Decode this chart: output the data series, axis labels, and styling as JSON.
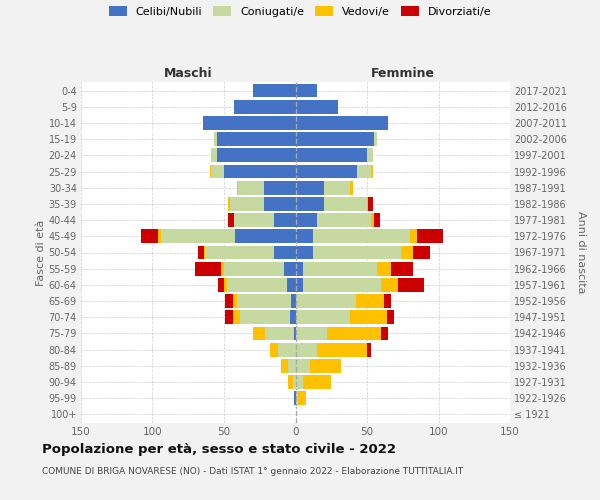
{
  "age_groups": [
    "100+",
    "95-99",
    "90-94",
    "85-89",
    "80-84",
    "75-79",
    "70-74",
    "65-69",
    "60-64",
    "55-59",
    "50-54",
    "45-49",
    "40-44",
    "35-39",
    "30-34",
    "25-29",
    "20-24",
    "15-19",
    "10-14",
    "5-9",
    "0-4"
  ],
  "birth_years": [
    "≤ 1921",
    "1922-1926",
    "1927-1931",
    "1932-1936",
    "1937-1941",
    "1942-1946",
    "1947-1951",
    "1952-1956",
    "1957-1961",
    "1962-1966",
    "1967-1971",
    "1972-1976",
    "1977-1981",
    "1982-1986",
    "1987-1991",
    "1992-1996",
    "1997-2001",
    "2002-2006",
    "2007-2011",
    "2012-2016",
    "2017-2021"
  ],
  "maschi": {
    "celibi": [
      0,
      1,
      0,
      0,
      0,
      1,
      4,
      3,
      6,
      8,
      15,
      42,
      15,
      22,
      22,
      50,
      55,
      55,
      65,
      43,
      30
    ],
    "coniugati": [
      0,
      0,
      2,
      5,
      12,
      20,
      35,
      38,
      42,
      42,
      48,
      52,
      28,
      24,
      18,
      9,
      4,
      2,
      0,
      0,
      0
    ],
    "vedovi": [
      0,
      0,
      3,
      5,
      6,
      9,
      5,
      3,
      2,
      2,
      1,
      2,
      0,
      1,
      1,
      1,
      0,
      0,
      0,
      0,
      0
    ],
    "divorziati": [
      0,
      0,
      0,
      0,
      0,
      0,
      5,
      5,
      4,
      18,
      4,
      12,
      4,
      0,
      0,
      0,
      0,
      0,
      0,
      0,
      0
    ]
  },
  "femmine": {
    "nubili": [
      0,
      0,
      0,
      0,
      0,
      0,
      0,
      0,
      5,
      5,
      12,
      12,
      15,
      20,
      20,
      43,
      50,
      55,
      65,
      30,
      15
    ],
    "coniugate": [
      0,
      2,
      5,
      10,
      15,
      22,
      38,
      42,
      55,
      52,
      62,
      68,
      38,
      30,
      18,
      10,
      4,
      2,
      0,
      0,
      0
    ],
    "vedove": [
      0,
      5,
      20,
      22,
      35,
      38,
      26,
      20,
      12,
      10,
      8,
      5,
      2,
      1,
      2,
      1,
      0,
      0,
      0,
      0,
      0
    ],
    "divorziate": [
      0,
      0,
      0,
      0,
      3,
      5,
      5,
      5,
      18,
      15,
      12,
      18,
      4,
      3,
      0,
      0,
      0,
      0,
      0,
      0,
      0
    ]
  },
  "colors": {
    "celibi": "#4472c4",
    "coniugati": "#c5d9a0",
    "vedovi": "#ffc000",
    "divorziati": "#cc0000"
  },
  "xlim": 150,
  "title": "Popolazione per età, sesso e stato civile - 2022",
  "subtitle": "COMUNE DI BRIGA NOVARESE (NO) - Dati ISTAT 1° gennaio 2022 - Elaborazione TUTTITALIA.IT",
  "ylabel_left": "Fasce di età",
  "ylabel_right": "Anni di nascita",
  "header_left": "Maschi",
  "header_right": "Femmine",
  "background_color": "#f2f2f2",
  "plot_bg": "#ffffff",
  "legend_labels": [
    "Celibi/Nubili",
    "Coniugati/e",
    "Vedovi/e",
    "Divorziati/e"
  ]
}
